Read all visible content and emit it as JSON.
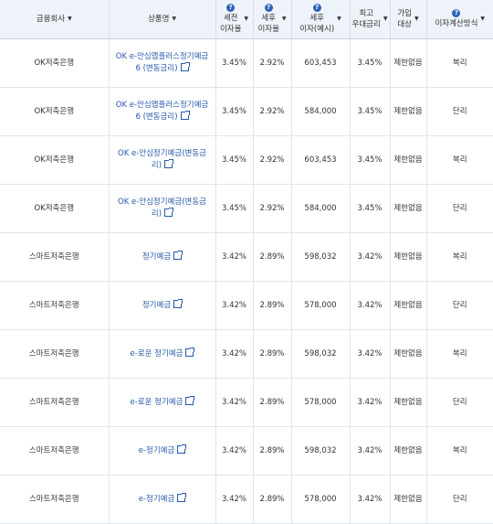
{
  "headers": {
    "bank": "금융회사",
    "product": "상품명",
    "pretax_line1": "세전",
    "pretax_line2": "이자율",
    "posttax_line1": "세후",
    "posttax_line2": "이자율",
    "interest_line1": "세후",
    "interest_line2": "이자(예시)",
    "max_line1": "최고",
    "max_line2": "우대금리",
    "join_line1": "가입",
    "join_line2": "대상",
    "method": "이자계산방식",
    "help_glyph": "?",
    "sort_glyph": "▼"
  },
  "rows": [
    {
      "bank": "OK저축은행",
      "product": "OK e-안심앱플러스정기예금6 (변동금리)",
      "pretax": "3.45%",
      "posttax": "2.92%",
      "interest": "603,453",
      "max": "3.45%",
      "target": "제한없음",
      "method": "복리"
    },
    {
      "bank": "OK저축은행",
      "product": "OK e-안심앱플러스정기예금6 (변동금리)",
      "pretax": "3.45%",
      "posttax": "2.92%",
      "interest": "584,000",
      "max": "3.45%",
      "target": "제한없음",
      "method": "단리"
    },
    {
      "bank": "OK저축은행",
      "product": "OK e-안심정기예금(변동금리)",
      "pretax": "3.45%",
      "posttax": "2.92%",
      "interest": "603,453",
      "max": "3.45%",
      "target": "제한없음",
      "method": "복리"
    },
    {
      "bank": "OK저축은행",
      "product": "OK e-안심정기예금(변동금리)",
      "pretax": "3.45%",
      "posttax": "2.92%",
      "interest": "584,000",
      "max": "3.45%",
      "target": "제한없음",
      "method": "단리"
    },
    {
      "bank": "스마트저축은행",
      "product": "정기예금",
      "pretax": "3.42%",
      "posttax": "2.89%",
      "interest": "598,032",
      "max": "3.42%",
      "target": "제한없음",
      "method": "복리"
    },
    {
      "bank": "스마트저축은행",
      "product": "정기예금",
      "pretax": "3.42%",
      "posttax": "2.89%",
      "interest": "578,000",
      "max": "3.42%",
      "target": "제한없음",
      "method": "단리"
    },
    {
      "bank": "스마트저축은행",
      "product": "e-로운 정기예금",
      "pretax": "3.42%",
      "posttax": "2.89%",
      "interest": "598,032",
      "max": "3.42%",
      "target": "제한없음",
      "method": "복리"
    },
    {
      "bank": "스마트저축은행",
      "product": "e-로운 정기예금",
      "pretax": "3.42%",
      "posttax": "2.89%",
      "interest": "578,000",
      "max": "3.42%",
      "target": "제한없음",
      "method": "단리"
    },
    {
      "bank": "스마트저축은행",
      "product": "e-정기예금",
      "pretax": "3.42%",
      "posttax": "2.89%",
      "interest": "598,032",
      "max": "3.42%",
      "target": "제한없음",
      "method": "복리"
    },
    {
      "bank": "스마트저축은행",
      "product": "e-정기예금",
      "pretax": "3.42%",
      "posttax": "2.89%",
      "interest": "578,000",
      "max": "3.42%",
      "target": "제한없음",
      "method": "단리"
    }
  ],
  "colors": {
    "header_bg": "#eef3fa",
    "link": "#2659a8",
    "help_icon": "#2d63b5",
    "border": "#e1e4e8"
  }
}
